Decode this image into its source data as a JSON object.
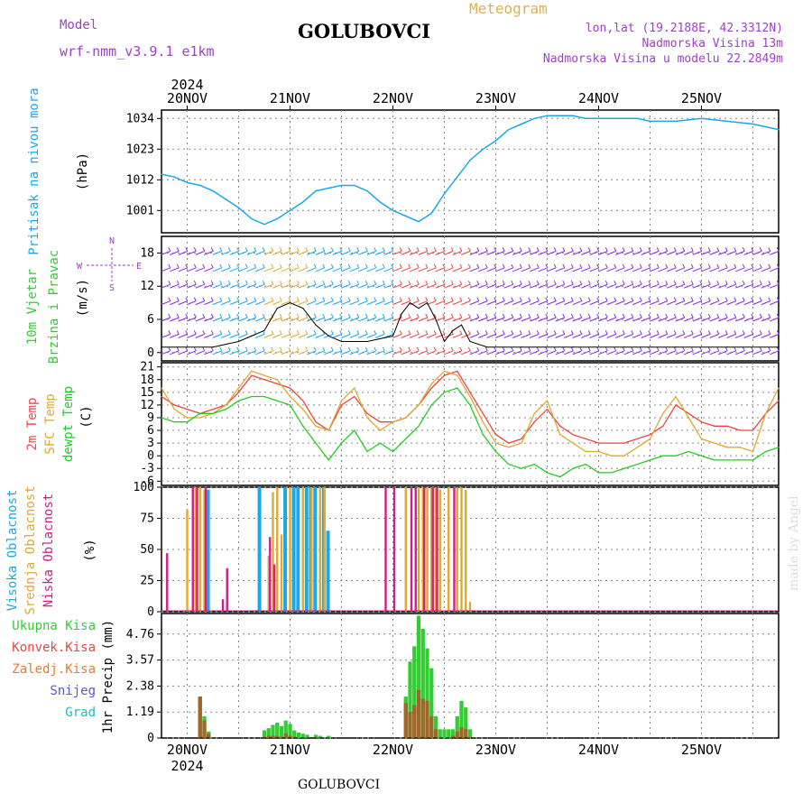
{
  "header": {
    "title": "GOLUBOVCI",
    "model_label": "Model",
    "model_name": "wrf-nmm_v3.9.1 e1km",
    "meteogram": "Meteogram",
    "info": [
      "lon,lat (19.2188E, 42.3312N)",
      "Nadmorska Visina 13m",
      "Nadmorska Visina u modelu 22.2849m"
    ],
    "footer": "GOLUBOVCI",
    "credit": "made by Angel"
  },
  "colors": {
    "pressure": "#1aa7ee",
    "temp2m": "#ee4444",
    "sfc": "#e0a830",
    "dewpt": "#22cc22",
    "high": "#1aa7ee",
    "mid": "#e0a830",
    "low": "#cc2288",
    "grid": "#888888",
    "precip_total": "#33cc33",
    "precip_conv": "#ee4444",
    "precip_frz": "#ee7733",
    "snow": "#5555dd",
    "grad": "#22bbbb"
  },
  "time_axis": {
    "year": "2024",
    "days": [
      "20NOV",
      "21NOV",
      "22NOV",
      "23NOV",
      "24NOV",
      "25NOV"
    ],
    "start_hour": -6,
    "end_hour": 138
  },
  "chart_data": [
    {
      "type": "line",
      "panel": "pressure",
      "ylabel": [
        "Pritisak na nivou mora",
        "(hPa)"
      ],
      "yticks": [
        1001,
        1012,
        1023,
        1034
      ],
      "ylim": [
        993,
        1037
      ],
      "x": [
        -6,
        -3,
        0,
        3,
        6,
        9,
        12,
        15,
        18,
        21,
        24,
        27,
        30,
        33,
        36,
        39,
        42,
        45,
        48,
        51,
        54,
        57,
        60,
        63,
        66,
        69,
        72,
        75,
        78,
        81,
        84,
        87,
        90,
        93,
        96,
        99,
        102,
        105,
        108,
        114,
        120,
        126,
        132,
        138
      ],
      "values": [
        1014,
        1013,
        1011,
        1010,
        1008,
        1005,
        1002,
        998,
        996,
        998,
        1001,
        1004,
        1008,
        1009,
        1010,
        1010,
        1008,
        1004,
        1001,
        999,
        997,
        1000,
        1007,
        1013,
        1019,
        1023,
        1026,
        1030,
        1032,
        1034,
        1035,
        1035,
        1035,
        1034,
        1034,
        1034,
        1034,
        1034,
        1033,
        1033,
        1034,
        1033,
        1032,
        1030
      ]
    },
    {
      "type": "line",
      "panel": "wind",
      "ylabel": [
        "10m Vjetar",
        "Brzina i Pravac",
        "(m/s)"
      ],
      "compass": {
        "n": "N",
        "s": "S",
        "w": "W",
        "e": "E"
      },
      "yticks": [
        0,
        6,
        12,
        18
      ],
      "ylim": [
        -1.5,
        21
      ],
      "x": [
        -6,
        0,
        6,
        12,
        18,
        21,
        24,
        27,
        30,
        33,
        36,
        42,
        48,
        50,
        52,
        54,
        56,
        58,
        60,
        62,
        64,
        66,
        70,
        78,
        90,
        102,
        114,
        126,
        138
      ],
      "values": [
        1,
        1,
        1,
        2,
        4,
        8,
        9,
        8,
        5,
        3,
        2,
        2,
        3,
        7,
        9,
        8,
        9,
        6,
        2,
        4,
        5,
        2,
        1,
        1,
        1,
        1,
        1,
        1,
        1
      ]
    },
    {
      "type": "line",
      "panel": "temperature",
      "ylabel": [
        "2m Temp",
        "SFC Temp",
        "dewpt Temp",
        "(C)"
      ],
      "yticks": [
        -6,
        -3,
        0,
        3,
        6,
        9,
        12,
        15,
        18,
        21
      ],
      "ylim": [
        -7,
        22
      ],
      "x": [
        -6,
        -3,
        0,
        3,
        6,
        9,
        12,
        15,
        18,
        21,
        24,
        27,
        30,
        33,
        36,
        39,
        42,
        45,
        48,
        51,
        54,
        57,
        60,
        63,
        66,
        69,
        72,
        75,
        78,
        81,
        84,
        87,
        90,
        93,
        96,
        99,
        102,
        105,
        108,
        111,
        114,
        117,
        120,
        123,
        126,
        129,
        132,
        135,
        138
      ],
      "series": [
        {
          "name": "2m Temp",
          "values": [
            14,
            12,
            11,
            10,
            11,
            12,
            15,
            19,
            18,
            17,
            16,
            13,
            8,
            6,
            12,
            14,
            10,
            8,
            8,
            9,
            12,
            16,
            19,
            20,
            15,
            10,
            5,
            3,
            4,
            8,
            11,
            7,
            5,
            4,
            3,
            3,
            3,
            4,
            5,
            7,
            12,
            10,
            8,
            7,
            7,
            6,
            6,
            10,
            13
          ]
        },
        {
          "name": "SFC Temp",
          "values": [
            16,
            11,
            9,
            9,
            10,
            12,
            16,
            20,
            19,
            18,
            14,
            11,
            7,
            6,
            13,
            16,
            9,
            6,
            8,
            9,
            12,
            17,
            20,
            19,
            14,
            8,
            3,
            2,
            3,
            10,
            13,
            5,
            3,
            1,
            1,
            0,
            0,
            2,
            4,
            10,
            14,
            9,
            4,
            3,
            2,
            2,
            1,
            10,
            16
          ]
        },
        {
          "name": "dewpt Temp",
          "values": [
            9,
            8,
            8,
            10,
            10,
            11,
            13,
            14,
            14,
            13,
            12,
            7,
            3,
            -1,
            3,
            6,
            1,
            3,
            1,
            4,
            7,
            12,
            15,
            16,
            12,
            5,
            1,
            -2,
            -3,
            -2,
            -4,
            -5,
            -3,
            -2,
            -4,
            -4,
            -3,
            -2,
            -1,
            0,
            0,
            1,
            0,
            -1,
            -1,
            -1,
            -1,
            1,
            2
          ]
        }
      ]
    },
    {
      "type": "bar",
      "panel": "clouds",
      "ylabel": [
        "Visoka Oblacnost",
        "Srednja Oblacnost",
        "Niska Oblacnost",
        "(%)"
      ],
      "yticks": [
        0,
        25,
        50,
        75,
        100
      ],
      "ylim": [
        0,
        100
      ],
      "series": [
        {
          "name": "Visoka Oblacnost",
          "x": [
            5,
            17,
            23,
            25,
            26,
            28,
            29,
            30,
            32,
            33
          ],
          "values": [
            98,
            100,
            100,
            100,
            100,
            100,
            100,
            100,
            100,
            65
          ]
        },
        {
          "name": "Srednja Oblacnost",
          "x": [
            0,
            2,
            3,
            4,
            19,
            20,
            21,
            22,
            24,
            27,
            29,
            31,
            32,
            51,
            54,
            55,
            56,
            57,
            58,
            59,
            61,
            63,
            64,
            65,
            66
          ],
          "values": [
            82,
            100,
            100,
            98,
            45,
            96,
            100,
            62,
            100,
            100,
            100,
            100,
            100,
            100,
            100,
            100,
            100,
            100,
            100,
            98,
            100,
            100,
            100,
            98,
            8
          ]
        },
        {
          "name": "Niska Oblacnost",
          "x": [
            -5,
            1,
            2,
            4,
            8,
            9,
            19,
            20,
            46,
            48,
            52,
            53,
            55,
            57,
            58,
            62
          ],
          "values": [
            47,
            100,
            100,
            100,
            10,
            35,
            60,
            38,
            100,
            100,
            100,
            100,
            100,
            100,
            100,
            100
          ]
        }
      ]
    },
    {
      "type": "bar",
      "panel": "precip",
      "ylabel": [
        "1hr Precip (mm)"
      ],
      "legend": [
        "Ukupna Kisa",
        "Konvek.Kisa",
        "Zaledj.Kisa",
        "Snijeg",
        "Grad"
      ],
      "yticks": [
        0,
        1.19,
        2.38,
        3.57,
        4.76
      ],
      "ylim": [
        0,
        5.7
      ],
      "x": [
        3,
        4,
        5,
        18,
        19,
        20,
        21,
        22,
        23,
        24,
        25,
        26,
        27,
        28,
        30,
        31,
        33,
        51,
        52,
        53,
        54,
        55,
        56,
        57,
        58,
        59,
        60,
        61,
        62,
        63,
        64,
        65,
        66
      ],
      "series": [
        {
          "name": "Ukupna Kisa",
          "values": [
            1.9,
            1,
            0.3,
            0.35,
            0.45,
            0.6,
            0.7,
            0.55,
            0.8,
            0.65,
            0.35,
            0.25,
            0.2,
            0.15,
            0.15,
            0.1,
            0.1,
            1.9,
            3.5,
            4.2,
            5.6,
            5,
            4.1,
            3.2,
            1,
            0.4,
            0.4,
            0.4,
            0.4,
            1,
            1.7,
            1.4,
            0.4
          ]
        },
        {
          "name": "Konvek.Kisa",
          "values": [
            1.9,
            0.8,
            0.2,
            0.05,
            0.1,
            0.1,
            0.1,
            0.05,
            0.2,
            0.1,
            0.05,
            0,
            0,
            0,
            0,
            0,
            0,
            1.6,
            1.2,
            1.5,
            2.2,
            1.8,
            1.7,
            1,
            0.4,
            0,
            0,
            0,
            0.1,
            0.3,
            0.5,
            0.4,
            0.05
          ]
        }
      ]
    }
  ]
}
